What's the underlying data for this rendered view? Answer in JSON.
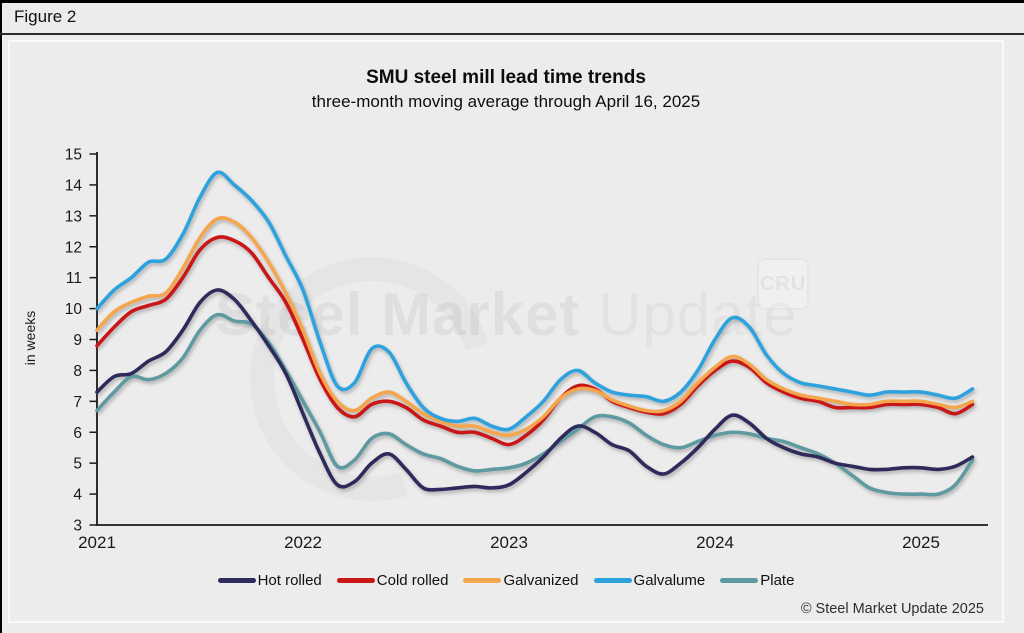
{
  "ui": {
    "figure_label": "Figure 2",
    "copyright": "© Steel Market Update 2025",
    "watermark_bold": "Steel Market",
    "watermark_light": " Update",
    "watermark_badge": "CRU"
  },
  "colors": {
    "background": "#ececec",
    "panel_border": "#f9f9f9",
    "axis": "#1a1a1a",
    "hot_rolled": "#2e2c5c",
    "cold_rolled": "#c91616",
    "galvanized": "#f5a64e",
    "galvalume": "#2da2dd",
    "plate": "#5f9aa1"
  },
  "chart_data": {
    "type": "line",
    "title": "SMU steel mill lead time trends",
    "subtitle": "three-month moving average through April 16, 2025",
    "ylabel": "in weeks",
    "xlabel": "",
    "ylim": [
      3,
      15
    ],
    "yticks": [
      3,
      4,
      5,
      6,
      7,
      8,
      9,
      10,
      11,
      12,
      13,
      14,
      15
    ],
    "xticks": [
      "2021",
      "2022",
      "2023",
      "2024",
      "2025"
    ],
    "x_unit": "monthly samples, Jan 2021 through Apr 2025",
    "grid": false,
    "legend_position": "bottom",
    "draw_order": [
      4,
      0,
      1,
      2,
      3
    ],
    "series": [
      {
        "name": "Hot rolled",
        "color": "#2e2c5c",
        "values": [
          7.3,
          7.8,
          7.9,
          8.3,
          8.6,
          9.3,
          10.2,
          10.6,
          10.3,
          9.6,
          8.8,
          7.9,
          6.6,
          5.3,
          4.3,
          4.4,
          5.0,
          5.3,
          4.8,
          4.2,
          4.15,
          4.2,
          4.25,
          4.2,
          4.3,
          4.7,
          5.2,
          5.8,
          6.2,
          6.0,
          5.6,
          5.4,
          4.9,
          4.65,
          5.0,
          5.5,
          6.1,
          6.55,
          6.3,
          5.8,
          5.5,
          5.3,
          5.2,
          5.0,
          4.9,
          4.8,
          4.8,
          4.85,
          4.85,
          4.8,
          4.9,
          5.2
        ]
      },
      {
        "name": "Cold rolled",
        "color": "#c91616",
        "values": [
          8.8,
          9.4,
          9.9,
          10.1,
          10.3,
          11.0,
          11.9,
          12.3,
          12.2,
          11.8,
          11.0,
          10.2,
          9.0,
          7.7,
          6.8,
          6.5,
          6.9,
          7.0,
          6.8,
          6.4,
          6.2,
          6.0,
          6.0,
          5.8,
          5.6,
          5.9,
          6.4,
          7.1,
          7.5,
          7.4,
          7.0,
          6.8,
          6.65,
          6.6,
          6.9,
          7.5,
          8.0,
          8.3,
          8.1,
          7.6,
          7.3,
          7.1,
          7.0,
          6.8,
          6.8,
          6.8,
          6.9,
          6.9,
          6.9,
          6.8,
          6.6,
          6.9
        ]
      },
      {
        "name": "Galvanized",
        "color": "#f5a64e",
        "values": [
          9.3,
          9.9,
          10.2,
          10.4,
          10.5,
          11.3,
          12.3,
          12.9,
          12.8,
          12.3,
          11.5,
          10.5,
          9.3,
          7.9,
          7.0,
          6.7,
          7.1,
          7.3,
          7.0,
          6.6,
          6.35,
          6.2,
          6.2,
          6.0,
          5.9,
          6.1,
          6.5,
          7.1,
          7.4,
          7.35,
          7.05,
          6.85,
          6.7,
          6.7,
          7.0,
          7.6,
          8.1,
          8.45,
          8.2,
          7.7,
          7.4,
          7.2,
          7.1,
          7.0,
          6.9,
          6.9,
          7.0,
          7.0,
          7.0,
          6.9,
          6.8,
          7.0
        ]
      },
      {
        "name": "Galvalume",
        "color": "#2da2dd",
        "values": [
          10.0,
          10.6,
          11.0,
          11.5,
          11.6,
          12.4,
          13.6,
          14.4,
          14.0,
          13.5,
          12.8,
          11.7,
          10.6,
          8.9,
          7.5,
          7.6,
          8.7,
          8.6,
          7.6,
          6.8,
          6.45,
          6.35,
          6.45,
          6.2,
          6.1,
          6.5,
          7.0,
          7.7,
          8.0,
          7.6,
          7.3,
          7.2,
          7.15,
          7.0,
          7.3,
          8.0,
          9.0,
          9.7,
          9.4,
          8.5,
          7.9,
          7.6,
          7.5,
          7.4,
          7.3,
          7.2,
          7.3,
          7.3,
          7.3,
          7.2,
          7.1,
          7.4
        ]
      },
      {
        "name": "Plate",
        "color": "#5f9aa1",
        "values": [
          6.7,
          7.3,
          7.8,
          7.7,
          7.9,
          8.4,
          9.3,
          9.8,
          9.6,
          9.5,
          8.9,
          8.0,
          7.0,
          6.0,
          4.9,
          5.1,
          5.8,
          5.95,
          5.6,
          5.3,
          5.15,
          4.9,
          4.75,
          4.8,
          4.85,
          5.0,
          5.3,
          5.7,
          6.1,
          6.5,
          6.5,
          6.3,
          5.9,
          5.6,
          5.5,
          5.7,
          5.9,
          6.0,
          5.95,
          5.8,
          5.7,
          5.5,
          5.3,
          5.0,
          4.6,
          4.2,
          4.05,
          4.0,
          4.0,
          4.0,
          4.3,
          5.1
        ]
      }
    ]
  }
}
